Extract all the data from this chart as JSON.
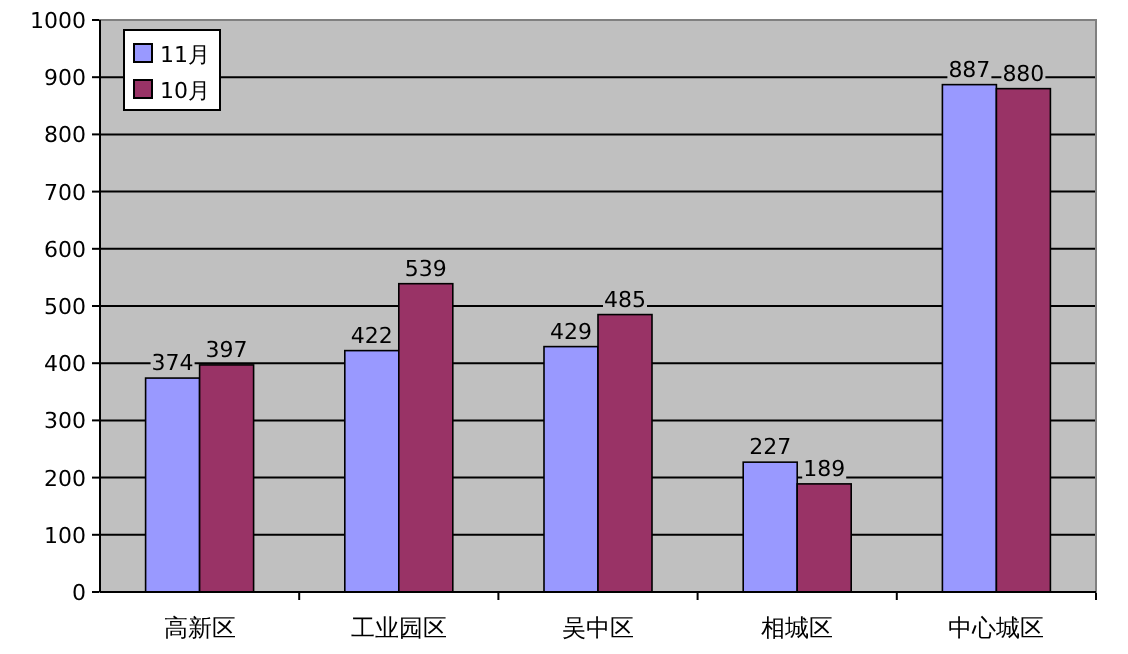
{
  "chart_data": {
    "type": "bar",
    "categories": [
      "高新区",
      "工业园区",
      "吴中区",
      "相城区",
      "中心城区"
    ],
    "series": [
      {
        "name": "11月",
        "color": "#9999ff",
        "values": [
          374,
          422,
          429,
          227,
          887
        ]
      },
      {
        "name": "10月",
        "color": "#993366",
        "values": [
          397,
          539,
          485,
          189,
          880
        ]
      }
    ],
    "ylim": [
      0,
      1000
    ],
    "yticks": [
      0,
      100,
      200,
      300,
      400,
      500,
      600,
      700,
      800,
      900,
      1000
    ],
    "grid": "y",
    "legend": "top left",
    "data_labels": true
  }
}
